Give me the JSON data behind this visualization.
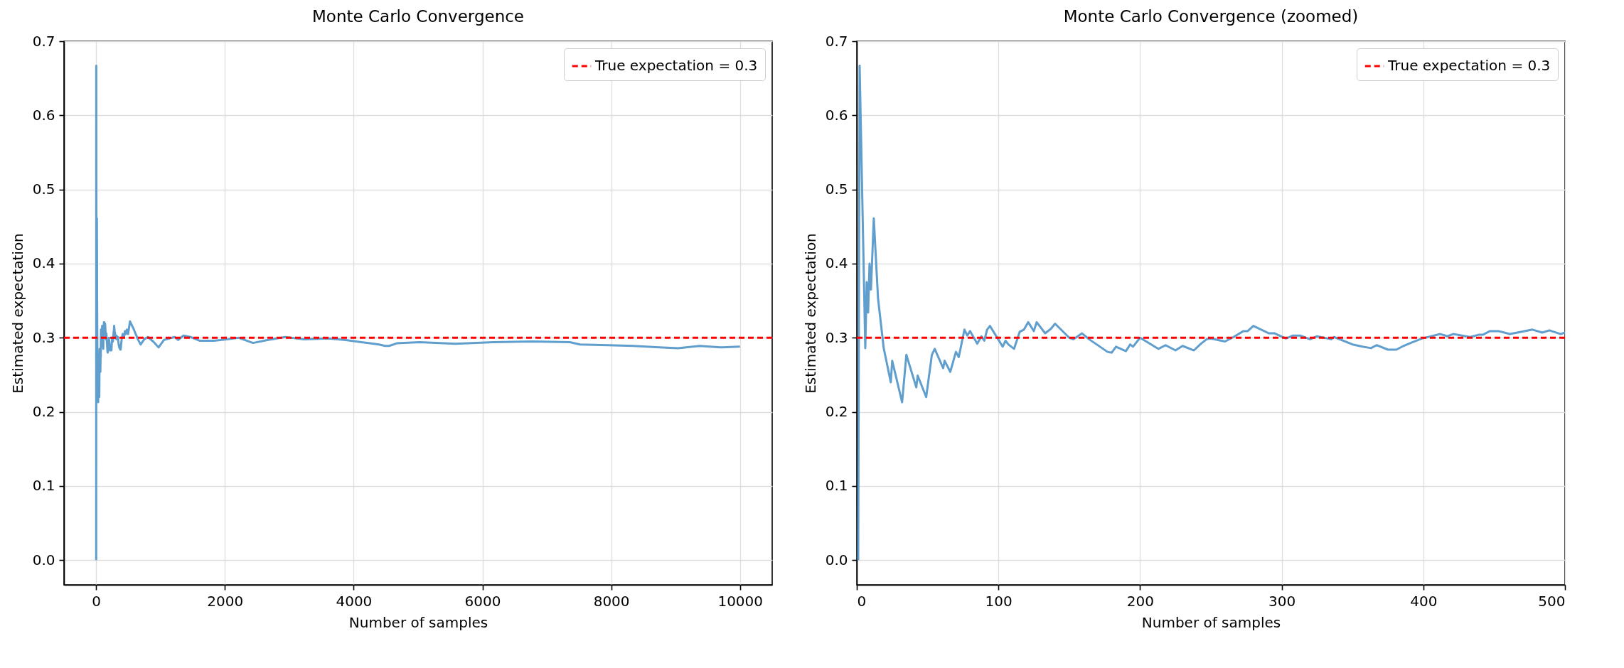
{
  "chart_data": [
    {
      "type": "line",
      "title": "Monte Carlo Convergence",
      "xlabel": "Number of samples",
      "ylabel": "Estimated expectation",
      "xlim": [
        -499,
        10500
      ],
      "ylim": [
        -0.0333,
        0.7
      ],
      "xticks": [
        0,
        2000,
        4000,
        6000,
        8000,
        10000
      ],
      "yticks": [
        {
          "value": 0,
          "label": "0.0"
        },
        0.1,
        0.2,
        0.3,
        0.4,
        0.5,
        0.6,
        0.7
      ],
      "grid": true,
      "legend": "top right",
      "ref_lines": [
        {
          "axis": "y",
          "value": 0.3,
          "label": "True expectation = 0.3",
          "color": "#ff0000",
          "line_style": "dashed"
        }
      ],
      "series": [
        {
          "color": "#5f9ecd",
          "x": [
            1,
            2,
            6,
            7,
            8,
            9,
            10,
            12,
            15,
            19,
            24,
            25,
            32,
            35,
            42,
            43,
            49,
            53,
            55,
            61,
            62,
            66,
            70,
            72,
            76,
            78,
            80,
            85,
            88,
            90,
            92,
            94,
            103,
            105,
            107,
            111,
            115,
            118,
            121,
            125,
            127,
            133,
            137,
            140,
            150,
            153,
            159,
            164,
            177,
            180,
            183,
            190,
            193,
            195,
            200,
            213,
            218,
            225,
            230,
            238,
            243,
            247,
            250,
            255,
            260,
            266,
            273,
            276,
            280,
            291,
            295,
            303,
            308,
            313,
            320,
            325,
            335,
            337,
            350,
            357,
            363,
            367,
            375,
            381,
            386,
            391,
            399,
            412,
            417,
            421,
            433,
            439,
            442,
            447,
            453,
            461,
            469,
            477,
            484,
            489,
            497,
            500,
            526,
            582,
            648,
            692,
            748,
            803,
            886,
            970,
            1053,
            1219,
            1274,
            1357,
            1468,
            1607,
            1828,
            2050,
            2216,
            2438,
            2659,
            2936,
            3213,
            3601,
            3878,
            4210,
            4394,
            4487,
            4552,
            4670,
            5026,
            5579,
            6172,
            6765,
            7358,
            7516,
            7951,
            8346,
            8742,
            9038,
            9374,
            9690,
            10000
          ],
          "values": [
            0.0,
            0.667,
            0.286,
            0.375,
            0.334,
            0.4,
            0.365,
            0.461,
            0.353,
            0.286,
            0.24,
            0.269,
            0.213,
            0.277,
            0.233,
            0.249,
            0.22,
            0.277,
            0.285,
            0.259,
            0.269,
            0.254,
            0.281,
            0.274,
            0.311,
            0.303,
            0.309,
            0.292,
            0.302,
            0.296,
            0.311,
            0.316,
            0.288,
            0.296,
            0.291,
            0.285,
            0.308,
            0.311,
            0.321,
            0.309,
            0.321,
            0.306,
            0.312,
            0.319,
            0.3,
            0.298,
            0.306,
            0.298,
            0.281,
            0.28,
            0.288,
            0.282,
            0.291,
            0.288,
            0.3,
            0.285,
            0.29,
            0.283,
            0.289,
            0.283,
            0.292,
            0.298,
            0.299,
            0.297,
            0.295,
            0.301,
            0.309,
            0.309,
            0.316,
            0.306,
            0.306,
            0.299,
            0.303,
            0.303,
            0.298,
            0.302,
            0.298,
            0.301,
            0.291,
            0.288,
            0.286,
            0.29,
            0.284,
            0.284,
            0.289,
            0.293,
            0.299,
            0.305,
            0.302,
            0.305,
            0.301,
            0.304,
            0.304,
            0.309,
            0.309,
            0.305,
            0.308,
            0.311,
            0.307,
            0.31,
            0.305,
            0.307,
            0.322,
            0.312,
            0.298,
            0.291,
            0.298,
            0.301,
            0.295,
            0.287,
            0.297,
            0.301,
            0.297,
            0.303,
            0.301,
            0.296,
            0.296,
            0.298,
            0.3,
            0.293,
            0.297,
            0.301,
            0.298,
            0.299,
            0.297,
            0.293,
            0.291,
            0.289,
            0.289,
            0.2925,
            0.294,
            0.292,
            0.294,
            0.295,
            0.294,
            0.291,
            0.29,
            0.289,
            0.287,
            0.286,
            0.289,
            0.287,
            0.288
          ]
        }
      ]
    },
    {
      "type": "line",
      "title": "Monte Carlo Convergence (zoomed)",
      "xlabel": "Number of samples",
      "ylabel": "Estimated expectation",
      "xlim": [
        0,
        500
      ],
      "ylim": [
        -0.0333,
        0.7
      ],
      "xticks": [
        0,
        100,
        200,
        300,
        400,
        500
      ],
      "yticks": [
        {
          "value": 0,
          "label": "0.0"
        },
        0.1,
        0.2,
        0.3,
        0.4,
        0.5,
        0.6,
        0.7
      ],
      "grid": true,
      "legend": "top right",
      "ref_lines": [
        {
          "axis": "y",
          "value": 0.3,
          "label": "True expectation = 0.3",
          "color": "#ff0000",
          "line_style": "dashed"
        }
      ],
      "series": [
        {
          "color": "#5f9ecd",
          "x": [
            1,
            2,
            6,
            7,
            8,
            9,
            10,
            12,
            15,
            19,
            24,
            25,
            32,
            35,
            42,
            43,
            49,
            53,
            55,
            61,
            62,
            66,
            70,
            72,
            76,
            78,
            80,
            85,
            88,
            90,
            92,
            94,
            103,
            105,
            107,
            111,
            115,
            118,
            121,
            125,
            127,
            133,
            137,
            140,
            150,
            153,
            159,
            164,
            177,
            180,
            183,
            190,
            193,
            195,
            200,
            213,
            218,
            225,
            230,
            238,
            243,
            247,
            250,
            255,
            260,
            266,
            273,
            276,
            280,
            291,
            295,
            303,
            308,
            313,
            320,
            325,
            335,
            337,
            350,
            357,
            363,
            367,
            375,
            381,
            386,
            391,
            399,
            412,
            417,
            421,
            433,
            439,
            442,
            447,
            453,
            461,
            469,
            477,
            484,
            489,
            497,
            500
          ],
          "values": [
            0.0,
            0.667,
            0.286,
            0.375,
            0.334,
            0.4,
            0.365,
            0.461,
            0.353,
            0.286,
            0.24,
            0.269,
            0.213,
            0.277,
            0.233,
            0.249,
            0.22,
            0.277,
            0.285,
            0.259,
            0.269,
            0.254,
            0.281,
            0.274,
            0.311,
            0.303,
            0.309,
            0.292,
            0.302,
            0.296,
            0.311,
            0.316,
            0.288,
            0.296,
            0.291,
            0.285,
            0.308,
            0.311,
            0.321,
            0.309,
            0.321,
            0.306,
            0.312,
            0.319,
            0.3,
            0.298,
            0.306,
            0.298,
            0.281,
            0.28,
            0.288,
            0.282,
            0.291,
            0.288,
            0.3,
            0.285,
            0.29,
            0.283,
            0.289,
            0.283,
            0.292,
            0.298,
            0.299,
            0.297,
            0.295,
            0.301,
            0.309,
            0.309,
            0.316,
            0.306,
            0.306,
            0.299,
            0.303,
            0.303,
            0.298,
            0.302,
            0.298,
            0.301,
            0.291,
            0.288,
            0.286,
            0.29,
            0.284,
            0.284,
            0.289,
            0.293,
            0.299,
            0.305,
            0.302,
            0.305,
            0.301,
            0.304,
            0.304,
            0.309,
            0.309,
            0.305,
            0.308,
            0.311,
            0.307,
            0.31,
            0.305,
            0.307
          ]
        }
      ]
    }
  ]
}
